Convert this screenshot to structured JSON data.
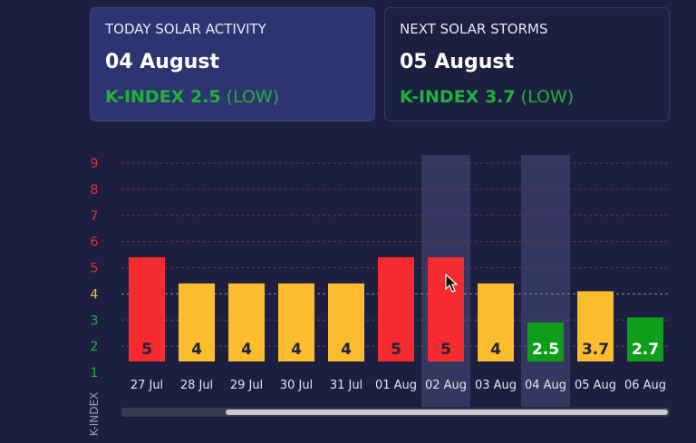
{
  "today": {
    "label": "TODAY SOLAR ACTIVITY",
    "date": "04 August",
    "kindex_text": "K-INDEX 2.5",
    "level": "(LOW)"
  },
  "next": {
    "label": "NEXT SOLAR STORMS",
    "date": "05 August",
    "kindex_text": "K-INDEX 3.7",
    "level": "(LOW)"
  },
  "colors": {
    "background": "#1c1f3f",
    "card_active": "#2e3470",
    "red": "#f52b2f",
    "yellow": "#fbbd2d",
    "green": "#0f9e1a",
    "scale_red": "#e0302e",
    "scale_yellow": "#f4c430",
    "scale_green": "#1fb23a"
  },
  "chart_data": {
    "type": "bar",
    "ylabel": "K-INDEX",
    "ylim": [
      1,
      9
    ],
    "yticks": [
      "1",
      "2",
      "3",
      "4",
      "5",
      "6",
      "7",
      "8",
      "9"
    ],
    "grid": true,
    "categories": [
      "27 Jul",
      "28 Jul",
      "29 Jul",
      "30 Jul",
      "31 Jul",
      "01 Aug",
      "02 Aug",
      "03 Aug",
      "04 Aug",
      "05 Aug",
      "06 Aug"
    ],
    "values": [
      5,
      4,
      4,
      4,
      4,
      5,
      5,
      4,
      2.5,
      3.7,
      2.7
    ],
    "value_labels": [
      "5",
      "4",
      "4",
      "4",
      "4",
      "5",
      "5",
      "4",
      "2.5",
      "3.7",
      "2.7"
    ],
    "highlighted_categories": [
      "02 Aug",
      "04 Aug"
    ]
  }
}
